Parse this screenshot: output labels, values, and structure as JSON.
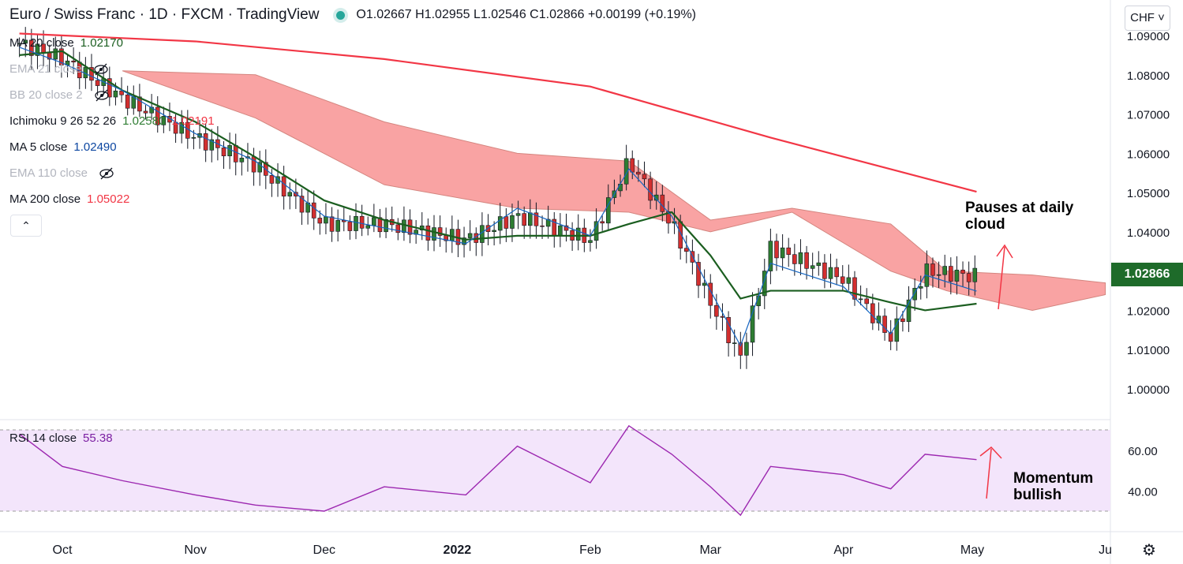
{
  "header": {
    "title": "Euro / Swiss Franc · 1D · FXCM · TradingView",
    "ohlc": "O1.02667 H1.02955 L1.02546 C1.02866 +0.00199 (+0.19%)"
  },
  "indicators": [
    {
      "label": "MA 20 close",
      "value": "1.02170",
      "color": "#1b5e20",
      "hidden": false
    },
    {
      "label": "EMA 21 close",
      "value": "",
      "color": "#b2b5be",
      "hidden": true
    },
    {
      "label": "BB 20 close 2",
      "value": "",
      "color": "#b2b5be",
      "hidden": true
    },
    {
      "label": "Ichimoku 9 26 52 26",
      "value": "1.02580",
      "value2": "1.02191",
      "color": "#2e7d32",
      "color2": "#f23645",
      "hidden": false
    },
    {
      "label": "MA 5 close",
      "value": "1.02490",
      "color": "#0d47a1",
      "hidden": false
    },
    {
      "label": "EMA 110 close",
      "value": "",
      "color": "#b2b5be",
      "hidden": true
    },
    {
      "label": "MA 200 close",
      "value": "1.05022",
      "color": "#f23645",
      "hidden": false
    }
  ],
  "rsi_legend": {
    "label": "RSI 14 close",
    "value": "55.38",
    "color": "#7b1fa2"
  },
  "currency_button": "CHF",
  "price_label": "1.02866",
  "annotations": {
    "price_line1": "Pauses at daily",
    "price_line2": "cloud",
    "rsi_line1": "Momentum",
    "rsi_line2": "bullish"
  },
  "collapse_icon": "chevron-up-icon",
  "settings_icon": "gear-icon",
  "chart_data": [
    {
      "type": "line",
      "title": "Euro / Swiss Franc · 1D · FXCM",
      "ylim": [
        0.997,
        1.0935
      ],
      "y_ticks": [
        "1.09000",
        "1.08000",
        "1.07000",
        "1.06000",
        "1.05000",
        "1.04000",
        "1.03000",
        "1.02000",
        "1.01000",
        "1.00000"
      ],
      "x_labels": [
        "Oct",
        "Nov",
        "Dec",
        "2022",
        "Feb",
        "Mar",
        "Apr",
        "May",
        "Ju"
      ],
      "x": [
        "Sep 21",
        "Oct 1",
        "Oct 15",
        "Nov 1",
        "Nov 15",
        "Dec 1",
        "Dec 15",
        "Jan 3",
        "Jan 15",
        "Feb 1",
        "Feb 10",
        "Feb 20",
        "Mar 1",
        "Mar 8",
        "Mar 15",
        "Apr 1",
        "Apr 12",
        "Apr 20",
        "May 2"
      ],
      "series": [
        {
          "name": "Close",
          "values": [
            1.088,
            1.084,
            1.074,
            1.064,
            1.057,
            1.042,
            1.042,
            1.038,
            1.044,
            1.038,
            1.058,
            1.042,
            1.022,
            1.008,
            1.036,
            1.028,
            1.013,
            1.03,
            1.0287
          ]
        },
        {
          "name": "MA 5",
          "values": [
            1.087,
            1.083,
            1.076,
            1.065,
            1.058,
            1.044,
            1.041,
            1.037,
            1.046,
            1.039,
            1.056,
            1.044,
            1.025,
            1.011,
            1.032,
            1.026,
            1.014,
            1.029,
            1.0249
          ]
        },
        {
          "name": "MA 20",
          "values": [
            1.085,
            1.086,
            1.076,
            1.068,
            1.059,
            1.048,
            1.043,
            1.038,
            1.039,
            1.039,
            1.042,
            1.045,
            1.034,
            1.023,
            1.025,
            1.025,
            1.022,
            1.02,
            1.0217
          ]
        }
      ],
      "ma200": {
        "name": "MA 200",
        "x": [
          "Sep 21",
          "Nov 1",
          "Dec 15",
          "Feb 1",
          "Mar 15",
          "May 2"
        ],
        "values": [
          1.0905,
          1.0885,
          1.084,
          1.077,
          1.064,
          1.0502
        ]
      },
      "cloud": {
        "name": "Ichimoku cloud",
        "x": [
          "Oct 15",
          "Nov 15",
          "Dec 15",
          "Jan 15",
          "Feb 10",
          "Mar 1",
          "Mar 20",
          "Apr 12",
          "Apr 25",
          "May 15",
          "Jun 1"
        ],
        "upper": [
          1.081,
          1.08,
          1.068,
          1.06,
          1.058,
          1.043,
          1.046,
          1.042,
          1.03,
          1.029,
          1.027
        ],
        "lower": [
          1.081,
          1.069,
          1.052,
          1.046,
          1.045,
          1.04,
          1.045,
          1.03,
          1.025,
          1.02,
          1.024
        ]
      }
    },
    {
      "type": "line",
      "title": "RSI 14 close",
      "ylim": [
        25,
        77
      ],
      "y_ticks": [
        "60.00",
        "40.00"
      ],
      "band": [
        30,
        70
      ],
      "x": [
        "Sep 21",
        "Oct 1",
        "Oct 15",
        "Nov 1",
        "Nov 15",
        "Dec 1",
        "Dec 15",
        "Jan 3",
        "Jan 15",
        "Feb 1",
        "Feb 10",
        "Feb 20",
        "Mar 1",
        "Mar 8",
        "Mar 15",
        "Apr 1",
        "Apr 12",
        "Apr 20",
        "May 2"
      ],
      "series": [
        {
          "name": "RSI 14",
          "values": [
            68,
            52,
            45,
            38,
            33,
            30,
            42,
            38,
            62,
            44,
            72,
            58,
            42,
            28,
            52,
            48,
            41,
            58,
            55.38
          ]
        }
      ]
    }
  ]
}
